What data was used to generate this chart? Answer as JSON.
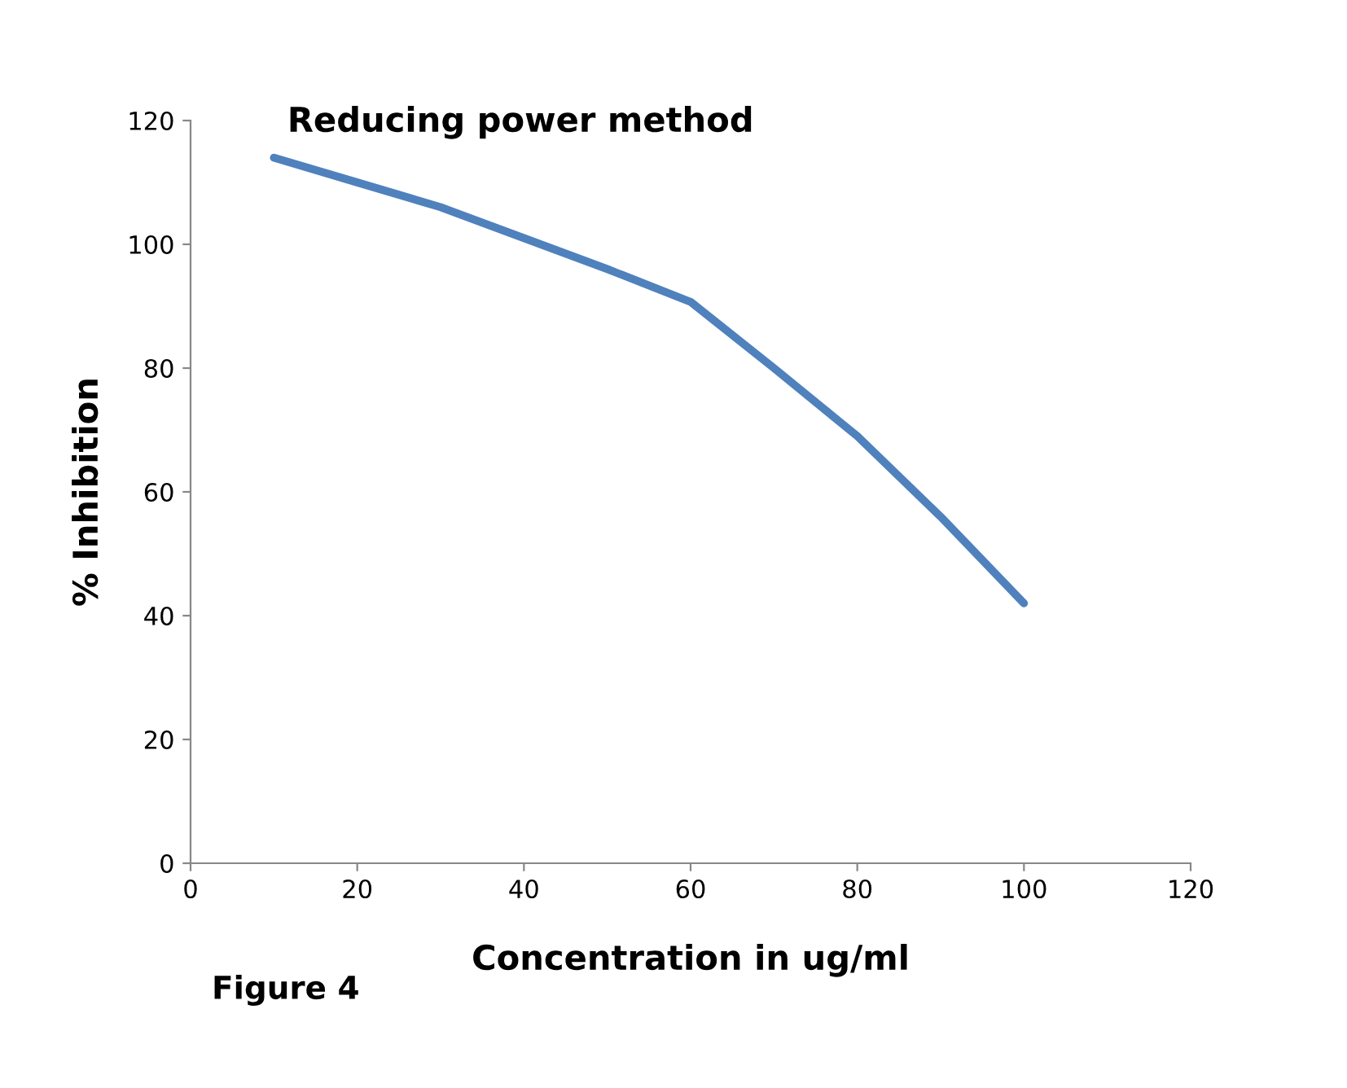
{
  "chart_data": {
    "type": "line",
    "title": "Reducing power method",
    "xlabel": "Concentration in ug/ml",
    "ylabel": "% Inhibition",
    "x": [
      10,
      20,
      30,
      40,
      50,
      60,
      70,
      80,
      90,
      100
    ],
    "series": [
      {
        "color": "#4f81bd",
        "values": [
          114,
          110,
          106,
          101,
          96,
          90.7,
          80,
          69,
          56,
          42
        ]
      }
    ],
    "xlim": [
      0,
      120
    ],
    "xticks": [
      0,
      20,
      40,
      60,
      80,
      100,
      120
    ],
    "ylim": [
      0,
      120
    ],
    "yticks": [
      0,
      20,
      40,
      60,
      80,
      100,
      120
    ],
    "grid": false,
    "legend": false,
    "marker": "none",
    "line_style": "solid",
    "annotations": [
      "Figure 4"
    ]
  }
}
